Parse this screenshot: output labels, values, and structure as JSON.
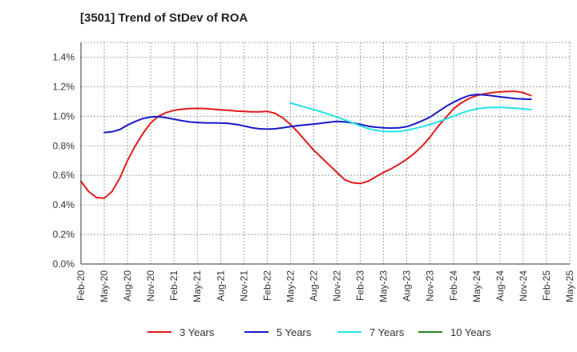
{
  "chart_data": {
    "type": "line",
    "title": "[3501]  Trend of StDev of ROA",
    "xlabel": "",
    "ylabel": "",
    "x_ticks": [
      "Feb-20",
      "May-20",
      "Aug-20",
      "Nov-20",
      "Feb-21",
      "May-21",
      "Aug-21",
      "Nov-21",
      "Feb-22",
      "May-22",
      "Aug-22",
      "Nov-22",
      "Feb-23",
      "May-23",
      "Aug-23",
      "Nov-23",
      "Feb-24",
      "May-24",
      "Aug-24",
      "Nov-24",
      "Feb-25",
      "May-25"
    ],
    "y_ticks": [
      "0.0%",
      "0.2%",
      "0.4%",
      "0.6%",
      "0.8%",
      "1.0%",
      "1.2%",
      "1.4%"
    ],
    "ylim": [
      0,
      1.5
    ],
    "grid": true,
    "legend_position": "bottom",
    "series": [
      {
        "name": "3 Years",
        "color": "#e31a1c",
        "values": [
          [
            "Feb-20",
            0.56
          ],
          [
            "Mar-20",
            0.49
          ],
          [
            "Apr-20",
            0.45
          ],
          [
            "May-20",
            0.445
          ],
          [
            "Jun-20",
            0.49
          ],
          [
            "Jul-20",
            0.58
          ],
          [
            "Aug-20",
            0.7
          ],
          [
            "Sep-20",
            0.8
          ],
          [
            "Oct-20",
            0.885
          ],
          [
            "Nov-20",
            0.955
          ],
          [
            "Dec-20",
            1.0
          ],
          [
            "Jan-21",
            1.025
          ],
          [
            "Feb-21",
            1.04
          ],
          [
            "Mar-21",
            1.048
          ],
          [
            "Apr-21",
            1.052
          ],
          [
            "May-21",
            1.053
          ],
          [
            "Jun-21",
            1.052
          ],
          [
            "Jul-21",
            1.048
          ],
          [
            "Aug-21",
            1.044
          ],
          [
            "Sep-21",
            1.04
          ],
          [
            "Oct-21",
            1.036
          ],
          [
            "Nov-21",
            1.033
          ],
          [
            "Dec-21",
            1.03
          ],
          [
            "Jan-22",
            1.03
          ],
          [
            "Feb-22",
            1.033
          ],
          [
            "Mar-22",
            1.02
          ],
          [
            "Apr-22",
            0.99
          ],
          [
            "May-22",
            0.945
          ],
          [
            "Jun-22",
            0.89
          ],
          [
            "Jul-22",
            0.83
          ],
          [
            "Aug-22",
            0.77
          ],
          [
            "Sep-22",
            0.72
          ],
          [
            "Oct-22",
            0.67
          ],
          [
            "Nov-22",
            0.62
          ],
          [
            "Dec-22",
            0.57
          ],
          [
            "Jan-23",
            0.55
          ],
          [
            "Feb-23",
            0.545
          ],
          [
            "Mar-23",
            0.56
          ],
          [
            "Apr-23",
            0.59
          ],
          [
            "May-23",
            0.62
          ],
          [
            "Jun-23",
            0.645
          ],
          [
            "Jul-23",
            0.675
          ],
          [
            "Aug-23",
            0.71
          ],
          [
            "Sep-23",
            0.75
          ],
          [
            "Oct-23",
            0.8
          ],
          [
            "Nov-23",
            0.86
          ],
          [
            "Dec-23",
            0.93
          ],
          [
            "Jan-24",
            0.99
          ],
          [
            "Feb-24",
            1.05
          ],
          [
            "Mar-24",
            1.09
          ],
          [
            "Apr-24",
            1.12
          ],
          [
            "May-24",
            1.14
          ],
          [
            "Jun-24",
            1.152
          ],
          [
            "Jul-24",
            1.16
          ],
          [
            "Aug-24",
            1.165
          ],
          [
            "Sep-24",
            1.168
          ],
          [
            "Oct-24",
            1.168
          ],
          [
            "Nov-24",
            1.16
          ],
          [
            "Dec-24",
            1.14
          ]
        ]
      },
      {
        "name": "5 Years",
        "color": "#1818c8",
        "values": [
          [
            "May-20",
            0.89
          ],
          [
            "Jun-20",
            0.895
          ],
          [
            "Jul-20",
            0.91
          ],
          [
            "Aug-20",
            0.94
          ],
          [
            "Sep-20",
            0.965
          ],
          [
            "Oct-20",
            0.985
          ],
          [
            "Nov-20",
            0.995
          ],
          [
            "Dec-20",
            0.998
          ],
          [
            "Jan-21",
            0.99
          ],
          [
            "Feb-21",
            0.98
          ],
          [
            "Mar-21",
            0.97
          ],
          [
            "Apr-21",
            0.962
          ],
          [
            "May-21",
            0.958
          ],
          [
            "Jun-21",
            0.955
          ],
          [
            "Jul-21",
            0.955
          ],
          [
            "Aug-21",
            0.954
          ],
          [
            "Sep-21",
            0.952
          ],
          [
            "Oct-21",
            0.945
          ],
          [
            "Nov-21",
            0.935
          ],
          [
            "Dec-21",
            0.923
          ],
          [
            "Jan-22",
            0.915
          ],
          [
            "Feb-22",
            0.913
          ],
          [
            "Mar-22",
            0.915
          ],
          [
            "Apr-22",
            0.922
          ],
          [
            "May-22",
            0.93
          ],
          [
            "Jun-22",
            0.937
          ],
          [
            "Jul-22",
            0.942
          ],
          [
            "Aug-22",
            0.947
          ],
          [
            "Sep-22",
            0.953
          ],
          [
            "Oct-22",
            0.96
          ],
          [
            "Nov-22",
            0.965
          ],
          [
            "Dec-22",
            0.962
          ],
          [
            "Jan-23",
            0.955
          ],
          [
            "Feb-23",
            0.945
          ],
          [
            "Mar-23",
            0.933
          ],
          [
            "Apr-23",
            0.926
          ],
          [
            "May-23",
            0.922
          ],
          [
            "Jun-23",
            0.92
          ],
          [
            "Jul-23",
            0.922
          ],
          [
            "Aug-23",
            0.93
          ],
          [
            "Sep-23",
            0.948
          ],
          [
            "Oct-23",
            0.97
          ],
          [
            "Nov-23",
            0.995
          ],
          [
            "Dec-23",
            1.03
          ],
          [
            "Jan-24",
            1.065
          ],
          [
            "Feb-24",
            1.095
          ],
          [
            "Mar-24",
            1.12
          ],
          [
            "Apr-24",
            1.14
          ],
          [
            "May-24",
            1.148
          ],
          [
            "Jun-24",
            1.145
          ],
          [
            "Jul-24",
            1.138
          ],
          [
            "Aug-24",
            1.132
          ],
          [
            "Sep-24",
            1.126
          ],
          [
            "Oct-24",
            1.12
          ],
          [
            "Nov-24",
            1.117
          ],
          [
            "Dec-24",
            1.115
          ]
        ]
      },
      {
        "name": "7 Years",
        "color": "#22e3ea",
        "values": [
          [
            "May-22",
            1.09
          ],
          [
            "Jun-22",
            1.075
          ],
          [
            "Jul-22",
            1.06
          ],
          [
            "Aug-22",
            1.045
          ],
          [
            "Sep-22",
            1.03
          ],
          [
            "Oct-22",
            1.012
          ],
          [
            "Nov-22",
            0.995
          ],
          [
            "Dec-22",
            0.975
          ],
          [
            "Jan-23",
            0.955
          ],
          [
            "Feb-23",
            0.935
          ],
          [
            "Mar-23",
            0.917
          ],
          [
            "Apr-23",
            0.905
          ],
          [
            "May-23",
            0.898
          ],
          [
            "Jun-23",
            0.896
          ],
          [
            "Jul-23",
            0.898
          ],
          [
            "Aug-23",
            0.905
          ],
          [
            "Sep-23",
            0.917
          ],
          [
            "Oct-23",
            0.93
          ],
          [
            "Nov-23",
            0.945
          ],
          [
            "Dec-23",
            0.962
          ],
          [
            "Jan-24",
            0.98
          ],
          [
            "Feb-24",
            1.0
          ],
          [
            "Mar-24",
            1.02
          ],
          [
            "Apr-24",
            1.038
          ],
          [
            "May-24",
            1.05
          ],
          [
            "Jun-24",
            1.057
          ],
          [
            "Jul-24",
            1.06
          ],
          [
            "Aug-24",
            1.06
          ],
          [
            "Sep-24",
            1.058
          ],
          [
            "Oct-24",
            1.055
          ],
          [
            "Nov-24",
            1.05
          ],
          [
            "Dec-24",
            1.045
          ]
        ]
      },
      {
        "name": "10 Years",
        "color": "#228b22",
        "values": []
      }
    ]
  }
}
